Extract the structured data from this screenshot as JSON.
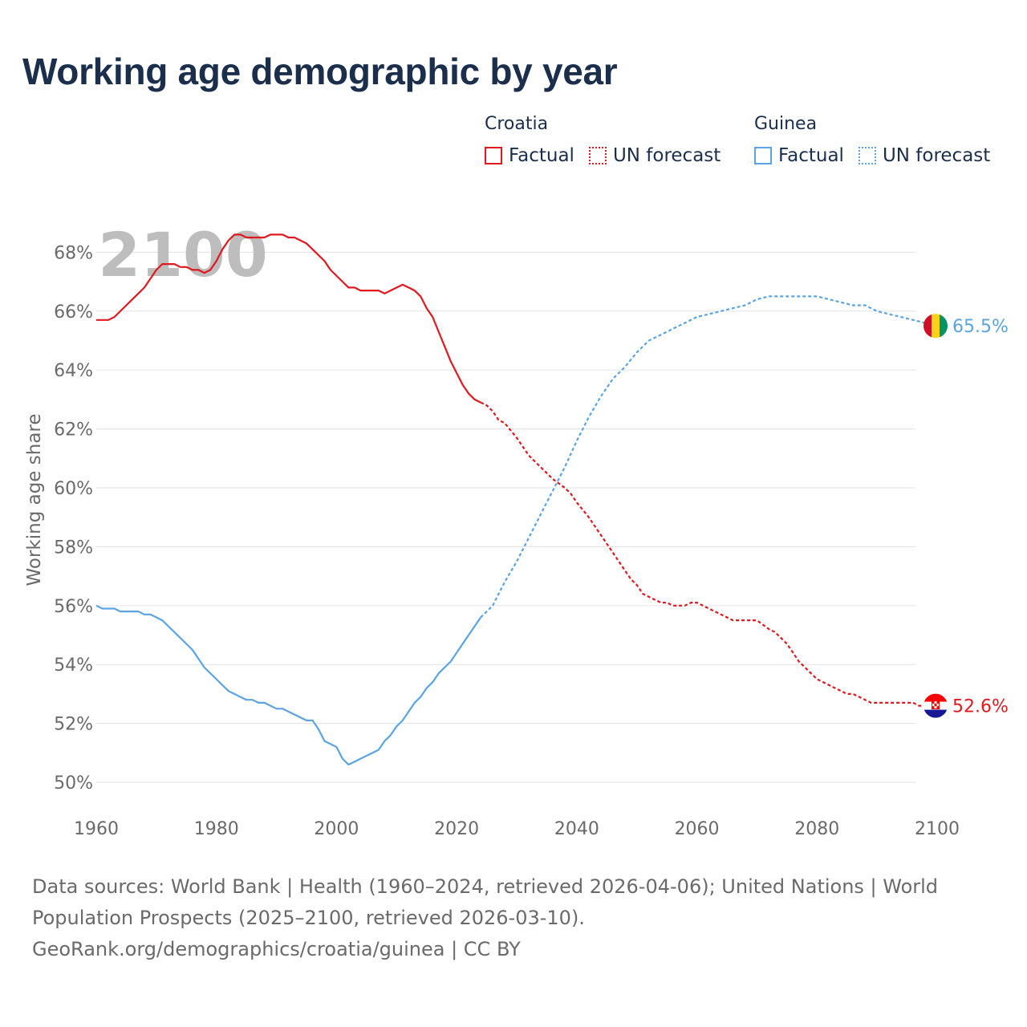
{
  "title": "Working age demographic by year",
  "legend": {
    "groups": [
      {
        "country": "Croatia",
        "color": "#e0191f",
        "factual_label": "Factual",
        "forecast_label": "UN forecast"
      },
      {
        "country": "Guinea",
        "color": "#5ba4e3",
        "factual_label": "Factual",
        "forecast_label": "UN forecast"
      }
    ]
  },
  "footer": {
    "line1": "Data sources: World Bank | Health (1960–2024, retrieved 2026-04-06); United Nations | World",
    "line2": "Population Prospects (2025–2100, retrieved 2026-03-10).",
    "line3": "GeoRank.org/demographics/croatia/guinea | CC BY"
  },
  "chart_data": {
    "type": "line",
    "title": "Working age demographic by year",
    "ylabel": "Working age share",
    "xlabel": "",
    "year_overlay": "2100",
    "xlim": [
      1960,
      2100
    ],
    "ylim": [
      49.5,
      69
    ],
    "x_ticks": [
      1960,
      1980,
      2000,
      2020,
      2040,
      2060,
      2080,
      2100
    ],
    "y_ticks": [
      50,
      52,
      54,
      56,
      58,
      60,
      62,
      64,
      66,
      68
    ],
    "y_tick_labels": [
      "50%",
      "52%",
      "54%",
      "56%",
      "58%",
      "60%",
      "62%",
      "64%",
      "66%",
      "68%"
    ],
    "grid": true,
    "factual_end_year": 2024,
    "series": [
      {
        "name": "Croatia",
        "color": "#e0191f",
        "end_label": "52.6%",
        "points": [
          [
            1960,
            65.7
          ],
          [
            1962,
            65.7
          ],
          [
            1963,
            65.8
          ],
          [
            1965,
            66.2
          ],
          [
            1967,
            66.6
          ],
          [
            1968,
            66.8
          ],
          [
            1970,
            67.4
          ],
          [
            1971,
            67.6
          ],
          [
            1973,
            67.6
          ],
          [
            1974,
            67.5
          ],
          [
            1975,
            67.5
          ],
          [
            1976,
            67.4
          ],
          [
            1977,
            67.4
          ],
          [
            1978,
            67.3
          ],
          [
            1979,
            67.4
          ],
          [
            1980,
            67.7
          ],
          [
            1981,
            68.1
          ],
          [
            1982,
            68.4
          ],
          [
            1983,
            68.6
          ],
          [
            1984,
            68.6
          ],
          [
            1985,
            68.5
          ],
          [
            1986,
            68.5
          ],
          [
            1988,
            68.5
          ],
          [
            1989,
            68.6
          ],
          [
            1991,
            68.6
          ],
          [
            1992,
            68.5
          ],
          [
            1993,
            68.5
          ],
          [
            1995,
            68.3
          ],
          [
            1996,
            68.1
          ],
          [
            1998,
            67.7
          ],
          [
            1999,
            67.4
          ],
          [
            2001,
            67.0
          ],
          [
            2002,
            66.8
          ],
          [
            2003,
            66.8
          ],
          [
            2004,
            66.7
          ],
          [
            2005,
            66.7
          ],
          [
            2007,
            66.7
          ],
          [
            2008,
            66.6
          ],
          [
            2009,
            66.7
          ],
          [
            2011,
            66.9
          ],
          [
            2012,
            66.8
          ],
          [
            2013,
            66.7
          ],
          [
            2014,
            66.5
          ],
          [
            2015,
            66.1
          ],
          [
            2016,
            65.8
          ],
          [
            2017,
            65.3
          ],
          [
            2018,
            64.8
          ],
          [
            2019,
            64.3
          ],
          [
            2020,
            63.9
          ],
          [
            2021,
            63.5
          ],
          [
            2022,
            63.2
          ],
          [
            2023,
            63.0
          ],
          [
            2024,
            62.9
          ],
          [
            2025,
            62.8
          ],
          [
            2026,
            62.6
          ],
          [
            2027,
            62.3
          ],
          [
            2028,
            62.2
          ],
          [
            2030,
            61.7
          ],
          [
            2032,
            61.1
          ],
          [
            2034,
            60.7
          ],
          [
            2035,
            60.5
          ],
          [
            2036,
            60.3
          ],
          [
            2038,
            60.0
          ],
          [
            2039,
            59.8
          ],
          [
            2040,
            59.5
          ],
          [
            2042,
            59.0
          ],
          [
            2044,
            58.4
          ],
          [
            2046,
            57.8
          ],
          [
            2048,
            57.2
          ],
          [
            2049,
            56.9
          ],
          [
            2050,
            56.7
          ],
          [
            2051,
            56.4
          ],
          [
            2053,
            56.2
          ],
          [
            2054,
            56.1
          ],
          [
            2055,
            56.1
          ],
          [
            2056,
            56.0
          ],
          [
            2058,
            56.0
          ],
          [
            2059,
            56.1
          ],
          [
            2060,
            56.1
          ],
          [
            2062,
            55.9
          ],
          [
            2064,
            55.7
          ],
          [
            2066,
            55.5
          ],
          [
            2070,
            55.5
          ],
          [
            2072,
            55.2
          ],
          [
            2073,
            55.1
          ],
          [
            2075,
            54.7
          ],
          [
            2077,
            54.1
          ],
          [
            2079,
            53.7
          ],
          [
            2080,
            53.5
          ],
          [
            2082,
            53.3
          ],
          [
            2084,
            53.1
          ],
          [
            2085,
            53.0
          ],
          [
            2086,
            53.0
          ],
          [
            2088,
            52.8
          ],
          [
            2089,
            52.7
          ],
          [
            2091,
            52.7
          ],
          [
            2094,
            52.7
          ],
          [
            2096,
            52.7
          ],
          [
            2097,
            52.6
          ],
          [
            2100,
            52.6
          ]
        ]
      },
      {
        "name": "Guinea",
        "color": "#5ba4e3",
        "end_label": "65.5%",
        "points": [
          [
            1960,
            56.0
          ],
          [
            1961,
            55.9
          ],
          [
            1963,
            55.9
          ],
          [
            1964,
            55.8
          ],
          [
            1967,
            55.8
          ],
          [
            1968,
            55.7
          ],
          [
            1969,
            55.7
          ],
          [
            1971,
            55.5
          ],
          [
            1973,
            55.1
          ],
          [
            1975,
            54.7
          ],
          [
            1976,
            54.5
          ],
          [
            1978,
            53.9
          ],
          [
            1980,
            53.5
          ],
          [
            1982,
            53.1
          ],
          [
            1984,
            52.9
          ],
          [
            1985,
            52.8
          ],
          [
            1986,
            52.8
          ],
          [
            1987,
            52.7
          ],
          [
            1988,
            52.7
          ],
          [
            1989,
            52.6
          ],
          [
            1990,
            52.5
          ],
          [
            1991,
            52.5
          ],
          [
            1993,
            52.3
          ],
          [
            1995,
            52.1
          ],
          [
            1996,
            52.1
          ],
          [
            1997,
            51.8
          ],
          [
            1998,
            51.4
          ],
          [
            2000,
            51.2
          ],
          [
            2001,
            50.8
          ],
          [
            2002,
            50.6
          ],
          [
            2004,
            50.8
          ],
          [
            2006,
            51.0
          ],
          [
            2007,
            51.1
          ],
          [
            2008,
            51.4
          ],
          [
            2009,
            51.6
          ],
          [
            2010,
            51.9
          ],
          [
            2011,
            52.1
          ],
          [
            2012,
            52.4
          ],
          [
            2013,
            52.7
          ],
          [
            2014,
            52.9
          ],
          [
            2015,
            53.2
          ],
          [
            2016,
            53.4
          ],
          [
            2017,
            53.7
          ],
          [
            2019,
            54.1
          ],
          [
            2021,
            54.7
          ],
          [
            2023,
            55.3
          ],
          [
            2024,
            55.6
          ],
          [
            2025,
            55.8
          ],
          [
            2026,
            56.0
          ],
          [
            2027,
            56.4
          ],
          [
            2028,
            56.8
          ],
          [
            2030,
            57.5
          ],
          [
            2032,
            58.3
          ],
          [
            2034,
            59.1
          ],
          [
            2036,
            59.9
          ],
          [
            2038,
            60.7
          ],
          [
            2040,
            61.6
          ],
          [
            2042,
            62.4
          ],
          [
            2044,
            63.1
          ],
          [
            2046,
            63.7
          ],
          [
            2048,
            64.1
          ],
          [
            2050,
            64.6
          ],
          [
            2052,
            65.0
          ],
          [
            2054,
            65.2
          ],
          [
            2056,
            65.4
          ],
          [
            2058,
            65.6
          ],
          [
            2060,
            65.8
          ],
          [
            2062,
            65.9
          ],
          [
            2064,
            66.0
          ],
          [
            2066,
            66.1
          ],
          [
            2068,
            66.2
          ],
          [
            2070,
            66.4
          ],
          [
            2072,
            66.5
          ],
          [
            2076,
            66.5
          ],
          [
            2080,
            66.5
          ],
          [
            2082,
            66.4
          ],
          [
            2084,
            66.3
          ],
          [
            2086,
            66.2
          ],
          [
            2088,
            66.2
          ],
          [
            2090,
            66.0
          ],
          [
            2092,
            65.9
          ],
          [
            2094,
            65.8
          ],
          [
            2096,
            65.7
          ],
          [
            2098,
            65.6
          ],
          [
            2100,
            65.5
          ]
        ]
      }
    ]
  }
}
